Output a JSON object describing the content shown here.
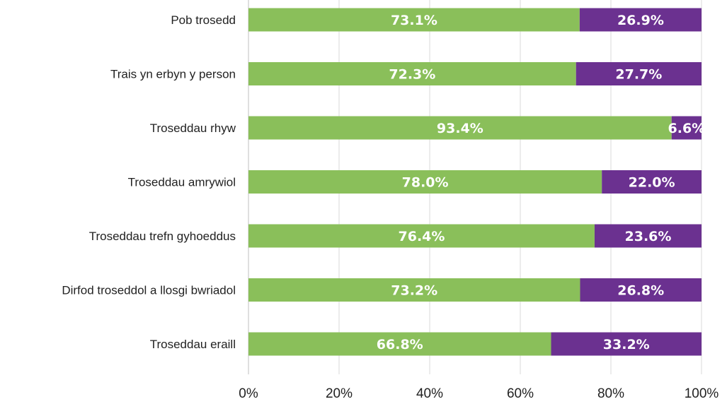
{
  "chart_data": {
    "type": "bar",
    "orientation": "horizontal",
    "stacked": true,
    "title": "",
    "xlabel": "",
    "ylabel": "",
    "xlim": [
      0,
      100
    ],
    "x_ticks": [
      0,
      20,
      40,
      60,
      80,
      100
    ],
    "x_tick_labels": [
      "0%",
      "20%",
      "40%",
      "60%",
      "80%",
      "100%"
    ],
    "grid": true,
    "legend": "none",
    "categories": [
      "Pob trosedd",
      "Trais yn erbyn y person",
      "Troseddau rhyw",
      "Troseddau amrywiol",
      "Troseddau trefn gyhoeddus",
      "Dirfod troseddol a llosgi bwriadol",
      "Troseddau eraill"
    ],
    "series": [
      {
        "color": "#8abf5a",
        "values": [
          73.1,
          72.3,
          93.4,
          78.0,
          76.4,
          73.2,
          66.8
        ],
        "labels": [
          "73.1%",
          "72.3%",
          "93.4%",
          "78.0%",
          "76.4%",
          "73.2%",
          "66.8%"
        ]
      },
      {
        "color": "#6b3190",
        "values": [
          26.9,
          27.7,
          6.6,
          22.0,
          23.6,
          26.8,
          33.2
        ],
        "labels": [
          "26.9%",
          "27.7%",
          "6.6%",
          "22.0%",
          "23.6%",
          "26.8%",
          "33.2%"
        ]
      }
    ]
  }
}
